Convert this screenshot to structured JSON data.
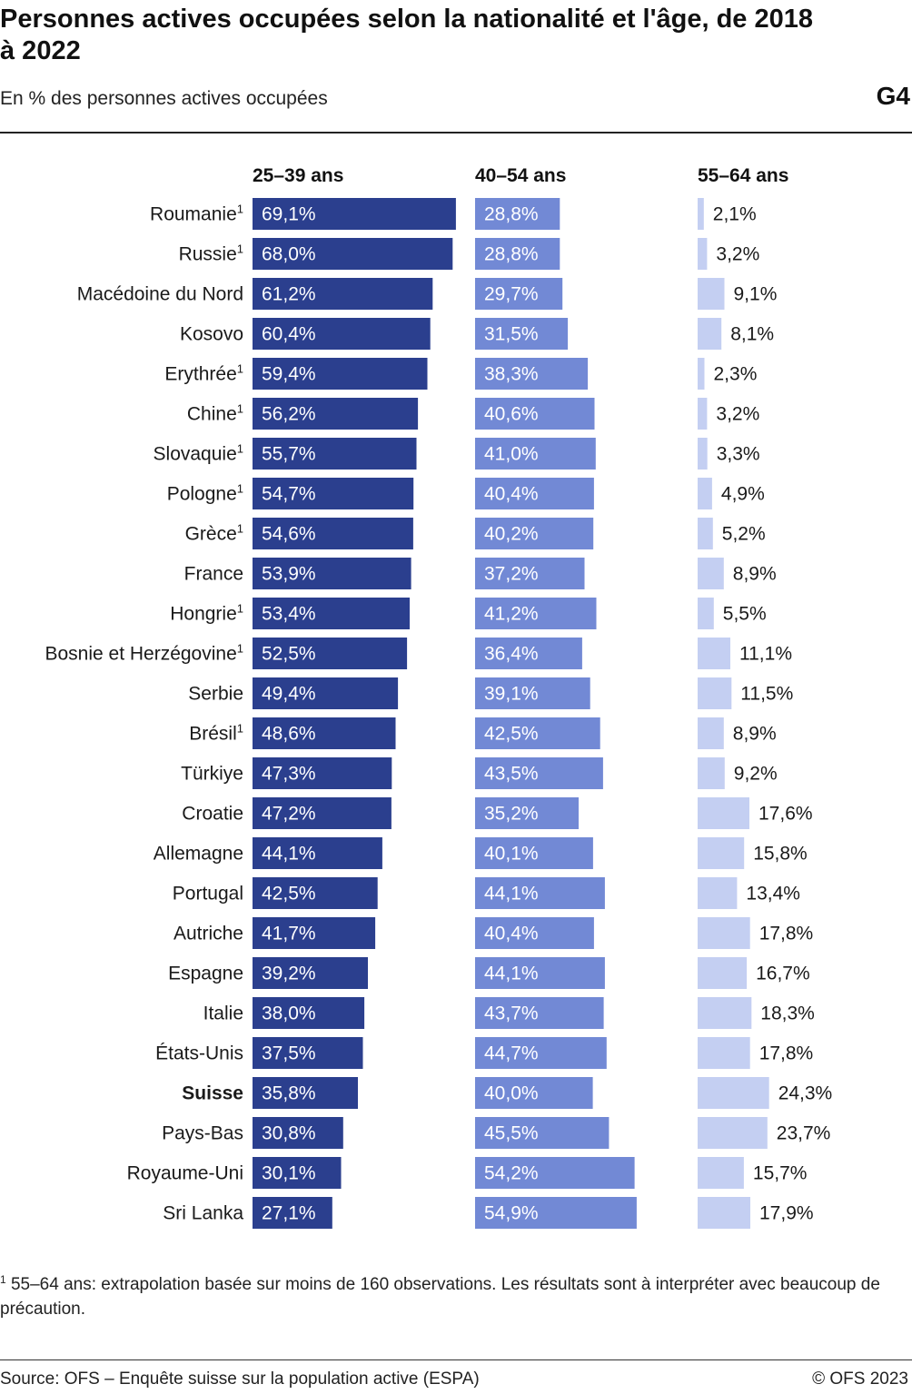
{
  "header": {
    "title": "Personnes actives occupées selon la nationalité et l'âge, de 2018 à 2022",
    "subtitle": "En % des personnes actives occupées",
    "code": "G4"
  },
  "chart_data": {
    "type": "bar",
    "orientation": "horizontal",
    "categories": [
      "Roumanie",
      "Russie",
      "Macédoine du Nord",
      "Kosovo",
      "Erythrée",
      "Chine",
      "Slovaquie",
      "Pologne",
      "Grèce",
      "France",
      "Hongrie",
      "Bosnie et Herzégovine",
      "Serbie",
      "Brésil",
      "Türkiye",
      "Croatie",
      "Allemagne",
      "Portugal",
      "Autriche",
      "Espagne",
      "Italie",
      "États-Unis",
      "Suisse",
      "Pays-Bas",
      "Royaume-Uni",
      "Sri Lanka"
    ],
    "footnote_markers": [
      "1",
      "1",
      "",
      "",
      "1",
      "1",
      "1",
      "1",
      "1",
      "",
      "1",
      "1",
      "",
      "1",
      "",
      "",
      "",
      "",
      "",
      "",
      "",
      "",
      "",
      "",
      "",
      ""
    ],
    "highlight_category": "Suisse",
    "series": [
      {
        "name": "25–39 ans",
        "color": "#2b3f8e",
        "label_color": "#ffffff",
        "values": [
          69.1,
          68.0,
          61.2,
          60.4,
          59.4,
          56.2,
          55.7,
          54.7,
          54.6,
          53.9,
          53.4,
          52.5,
          49.4,
          48.6,
          47.3,
          47.2,
          44.1,
          42.5,
          41.7,
          39.2,
          38.0,
          37.5,
          35.8,
          30.8,
          30.1,
          27.1
        ],
        "labels": [
          "69,1%",
          "68,0%",
          "61,2%",
          "60,4%",
          "59,4%",
          "56,2%",
          "55,7%",
          "54,7%",
          "54,6%",
          "53,9%",
          "53,4%",
          "52,5%",
          "49,4%",
          "48,6%",
          "47,3%",
          "47,2%",
          "44,1%",
          "42,5%",
          "41,7%",
          "39,2%",
          "38,0%",
          "37,5%",
          "35,8%",
          "30,8%",
          "30,1%",
          "27,1%"
        ]
      },
      {
        "name": "40–54 ans",
        "color": "#7289d5",
        "label_color": "#ffffff",
        "values": [
          28.8,
          28.8,
          29.7,
          31.5,
          38.3,
          40.6,
          41.0,
          40.4,
          40.2,
          37.2,
          41.2,
          36.4,
          39.1,
          42.5,
          43.5,
          35.2,
          40.1,
          44.1,
          40.4,
          44.1,
          43.7,
          44.7,
          40.0,
          45.5,
          54.2,
          54.9
        ],
        "labels": [
          "28,8%",
          "28,8%",
          "29,7%",
          "31,5%",
          "38,3%",
          "40,6%",
          "41,0%",
          "40,4%",
          "40,2%",
          "37,2%",
          "41,2%",
          "36,4%",
          "39,1%",
          "42,5%",
          "43,5%",
          "35,2%",
          "40,1%",
          "44,1%",
          "40,4%",
          "44,1%",
          "43,7%",
          "44,7%",
          "40,0%",
          "45,5%",
          "54,2%",
          "54,9%"
        ]
      },
      {
        "name": "55–64 ans",
        "color": "#c4cff2",
        "label_color": "#1a1a1a",
        "values": [
          2.1,
          3.2,
          9.1,
          8.1,
          2.3,
          3.2,
          3.3,
          4.9,
          5.2,
          8.9,
          5.5,
          11.1,
          11.5,
          8.9,
          9.2,
          17.6,
          15.8,
          13.4,
          17.8,
          16.7,
          18.3,
          17.8,
          24.3,
          23.7,
          15.7,
          17.9
        ],
        "labels": [
          "2,1%",
          "3,2%",
          "9,1%",
          "8,1%",
          "2,3%",
          "3,2%",
          "3,3%",
          "4,9%",
          "5,2%",
          "8,9%",
          "5,5%",
          "11,1%",
          "11,5%",
          "8,9%",
          "9,2%",
          "17,6%",
          "15,8%",
          "13,4%",
          "17,8%",
          "16,7%",
          "18,3%",
          "17,8%",
          "24,3%",
          "23,7%",
          "15,7%",
          "17,9%"
        ]
      }
    ],
    "xlim": [
      0,
      100
    ],
    "grid": false,
    "legend": "column headers above bars"
  },
  "footnote": {
    "marker": "1",
    "text": "55–64 ans: extrapolation basée sur moins de 160 observations. Les résultats sont à interpréter avec beaucoup de précaution."
  },
  "footer": {
    "source": "Source: OFS – Enquête suisse sur la population active (ESPA)",
    "copyright": "© OFS 2023"
  }
}
